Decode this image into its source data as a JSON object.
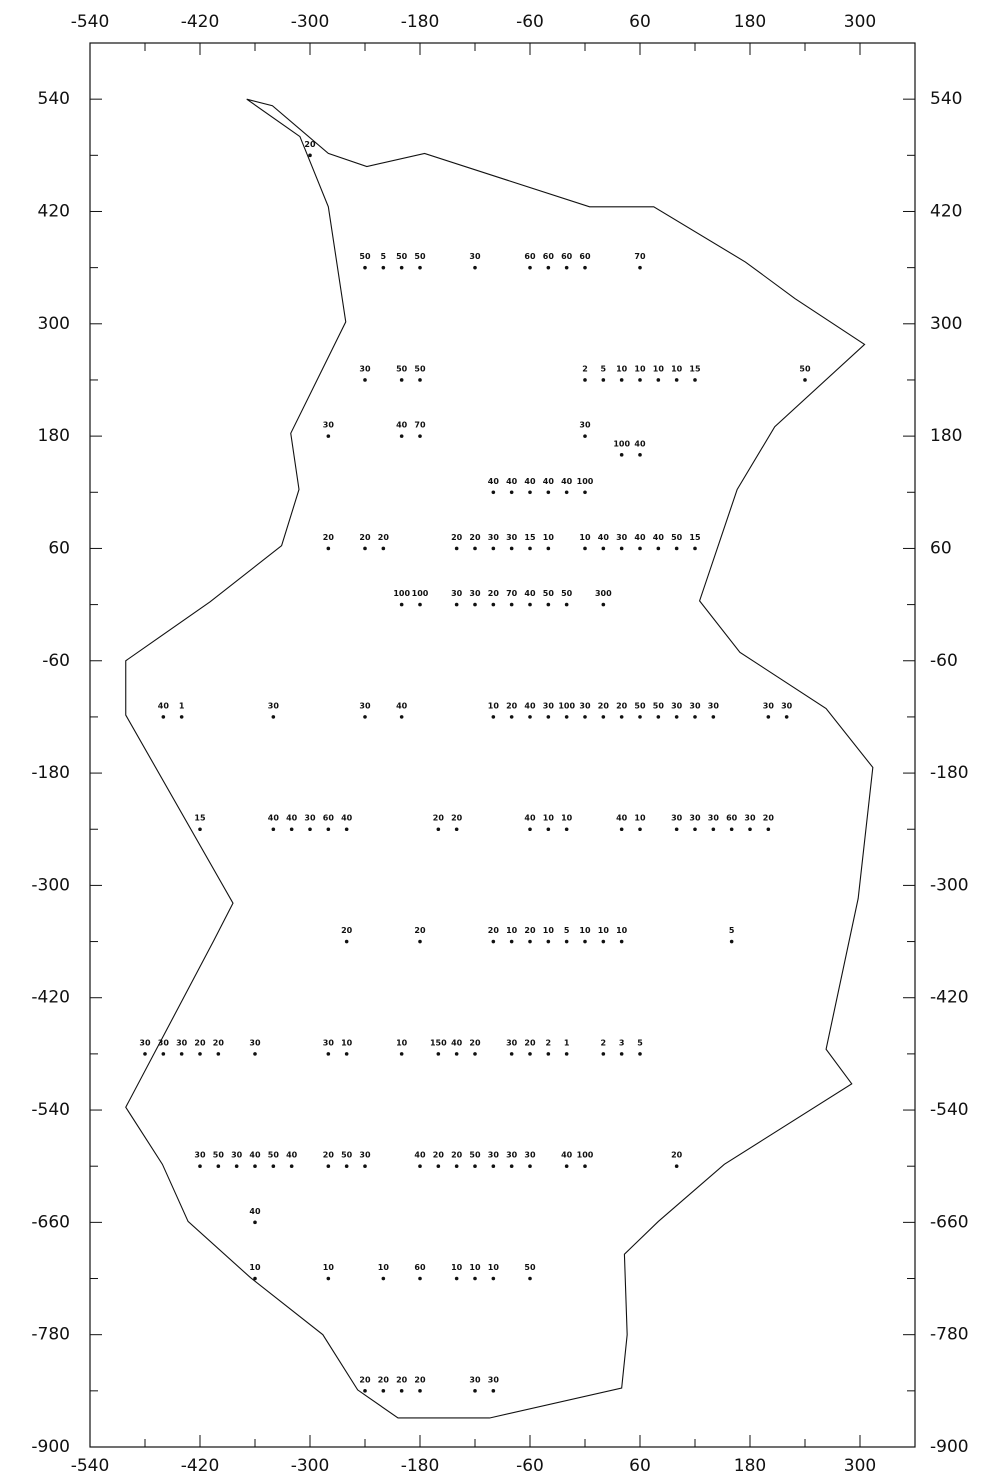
{
  "chart_data": {
    "type": "scatter",
    "xlim": [
      -540,
      360
    ],
    "ylim": [
      -900,
      600
    ],
    "xticks": [
      -540,
      -420,
      -300,
      -180,
      -60,
      60,
      180,
      300
    ],
    "x_minor_ticks": [
      -480,
      -360,
      -240,
      -120,
      0,
      120,
      240
    ],
    "yticks": [
      -900,
      -780,
      -660,
      -540,
      -420,
      -300,
      -180,
      -60,
      60,
      180,
      300,
      420,
      540
    ],
    "y_minor_ticks": [
      -840,
      -720,
      -600,
      -480,
      -360,
      -240,
      -120,
      0,
      120,
      240,
      360,
      480
    ],
    "grid": false,
    "color": "#111111",
    "boundary": {
      "x": [
        -369,
        -341,
        -280,
        -238,
        -175,
        5,
        75,
        175,
        229,
        305,
        207,
        166,
        125,
        169,
        263,
        314,
        298,
        263,
        291,
        152,
        80,
        43,
        46,
        40,
        -104,
        -204,
        -248,
        -286,
        -365,
        -433,
        -461,
        -501,
        -405,
        -384,
        -501,
        -501,
        -409,
        -331,
        -312,
        -321,
        -261,
        -280,
        -311
      ],
      "y": [
        540,
        533,
        482,
        468,
        482,
        425,
        425,
        366,
        327,
        278,
        190,
        123,
        4,
        -51,
        -111,
        -174,
        -314,
        -475,
        -512,
        -598,
        -659,
        -694,
        -780,
        -837,
        -869,
        -869,
        -839,
        -780,
        -719,
        -659,
        -598,
        -537,
        -359,
        -319,
        -118,
        -60,
        3,
        63,
        123,
        183,
        302,
        425,
        500
      ]
    },
    "points": [
      {
        "y": 480,
        "x": [
          -300
        ],
        "values": [
          20
        ]
      },
      {
        "y": 360,
        "x": [
          -240,
          -220,
          -200,
          -180,
          -120,
          -60,
          -40,
          -20,
          0,
          60
        ],
        "values": [
          50,
          5,
          50,
          50,
          30,
          60,
          60,
          60,
          60,
          70
        ]
      },
      {
        "y": 240,
        "x": [
          -240,
          -200,
          -180,
          0,
          20,
          40,
          60,
          80,
          100,
          120,
          240
        ],
        "values": [
          30,
          50,
          50,
          2,
          5,
          10,
          10,
          10,
          10,
          15,
          50
        ]
      },
      {
        "y": 180,
        "x": [
          -280,
          -200,
          -180,
          0
        ],
        "values": [
          30,
          40,
          70,
          30
        ]
      },
      {
        "y": 160,
        "x": [
          40,
          60
        ],
        "values": [
          100,
          40
        ]
      },
      {
        "y": 120,
        "x": [
          -100,
          -80,
          -60,
          -40,
          -20,
          0
        ],
        "values": [
          40,
          40,
          40,
          40,
          40,
          100
        ]
      },
      {
        "y": 60,
        "x": [
          -280,
          -240,
          -220,
          -140,
          -120,
          -100,
          -80,
          -60,
          -40,
          0,
          20,
          40,
          60,
          80,
          100,
          120
        ],
        "values": [
          20,
          20,
          20,
          20,
          20,
          30,
          30,
          15,
          10,
          10,
          40,
          30,
          40,
          40,
          50,
          15
        ]
      },
      {
        "y": 0,
        "x": [
          -200,
          -180,
          -140,
          -120,
          -100,
          -80,
          -60,
          -40,
          -20,
          20
        ],
        "values": [
          100,
          100,
          30,
          30,
          20,
          70,
          40,
          50,
          50,
          300
        ]
      },
      {
        "y": -120,
        "x": [
          -460,
          -440,
          -340,
          -240,
          -200,
          -100,
          -80,
          -60,
          -40,
          -20,
          0,
          20,
          40,
          60,
          80,
          100,
          120,
          140,
          200,
          220
        ],
        "values": [
          40,
          1,
          30,
          30,
          40,
          10,
          20,
          40,
          30,
          100,
          30,
          20,
          20,
          50,
          50,
          30,
          30,
          30,
          30,
          30
        ]
      },
      {
        "y": -240,
        "x": [
          -420,
          -340,
          -320,
          -300,
          -280,
          -260,
          -160,
          -140,
          -60,
          -40,
          -20,
          40,
          60,
          100,
          120,
          140,
          160,
          180,
          200
        ],
        "values": [
          15,
          40,
          40,
          30,
          60,
          40,
          20,
          20,
          40,
          10,
          10,
          40,
          10,
          30,
          30,
          30,
          60,
          30,
          20
        ]
      },
      {
        "y": -360,
        "x": [
          -260,
          -180,
          -100,
          -80,
          -60,
          -40,
          -20,
          0,
          20,
          40,
          160
        ],
        "values": [
          20,
          20,
          20,
          10,
          20,
          10,
          5,
          10,
          10,
          10,
          5
        ]
      },
      {
        "y": -480,
        "x": [
          -480,
          -460,
          -440,
          -420,
          -400,
          -360,
          -280,
          -260,
          -200,
          -160,
          -140,
          -120,
          -80,
          -60,
          -40,
          -20,
          20,
          40,
          60
        ],
        "values": [
          30,
          30,
          30,
          20,
          20,
          30,
          30,
          10,
          10,
          150,
          40,
          20,
          30,
          20,
          2,
          1,
          2,
          3,
          5
        ]
      },
      {
        "y": -600,
        "x": [
          -420,
          -400,
          -380,
          -360,
          -340,
          -320,
          -280,
          -260,
          -240,
          -180,
          -160,
          -140,
          -120,
          -100,
          -80,
          -60,
          -20,
          0,
          100
        ],
        "values": [
          30,
          50,
          30,
          40,
          50,
          40,
          20,
          50,
          30,
          40,
          20,
          20,
          50,
          30,
          30,
          30,
          40,
          100,
          20
        ]
      },
      {
        "y": -660,
        "x": [
          -360
        ],
        "values": [
          40
        ]
      },
      {
        "y": -720,
        "x": [
          -360,
          -280,
          -220,
          -180,
          -140,
          -120,
          -100,
          -60
        ],
        "values": [
          10,
          10,
          10,
          60,
          10,
          10,
          10,
          50
        ]
      },
      {
        "y": -840,
        "x": [
          -240,
          -220,
          -200,
          -180,
          -120,
          -100
        ],
        "values": [
          20,
          20,
          20,
          20,
          30,
          30
        ]
      }
    ]
  }
}
